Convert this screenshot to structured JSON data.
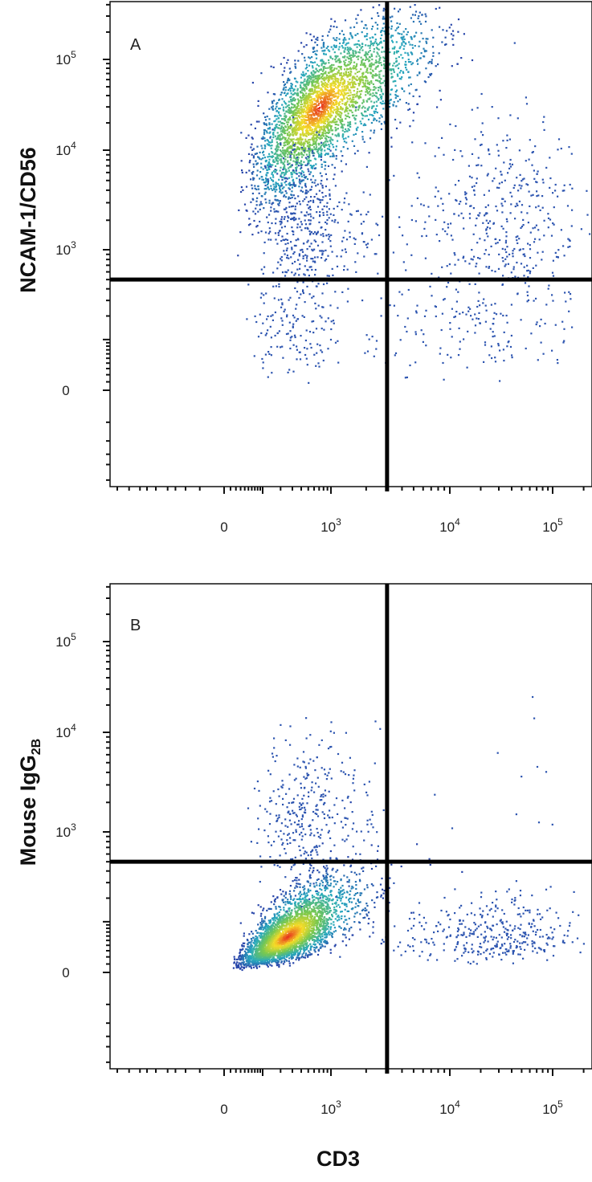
{
  "chart_data": [
    {
      "type": "scatter",
      "panel_label": "A",
      "xlabel": "",
      "ylabel": "NCAM-1/CD56",
      "x_scale": "biexponential",
      "y_scale": "biexponential",
      "x_ticks": [
        {
          "value": 0,
          "base": "0",
          "exp": ""
        },
        {
          "value": 1000,
          "base": "10",
          "exp": "3"
        },
        {
          "value": 10000,
          "base": "10",
          "exp": "4"
        },
        {
          "value": 100000,
          "base": "10",
          "exp": "5"
        }
      ],
      "y_ticks": [
        {
          "value": 0,
          "base": "0",
          "exp": ""
        },
        {
          "value": 1000,
          "base": "10",
          "exp": "3"
        },
        {
          "value": 10000,
          "base": "10",
          "exp": "4"
        },
        {
          "value": 100000,
          "base": "10",
          "exp": "5"
        }
      ],
      "gates": {
        "x": 3000,
        "y": 500
      },
      "populations": [
        {
          "center": [
            700,
            30000
          ],
          "spread": [
            0.45,
            0.45
          ],
          "count": 3400,
          "dense": true
        },
        {
          "center": [
            450,
            1800
          ],
          "spread": [
            0.35,
            0.45
          ],
          "count": 500,
          "dense": false
        },
        {
          "center": [
            30000,
            2500
          ],
          "spread": [
            0.4,
            0.5
          ],
          "count": 420,
          "dense": false
        },
        {
          "center": [
            300,
            120
          ],
          "spread": [
            0.35,
            0.35
          ],
          "count": 120,
          "dense": false
        },
        {
          "center": [
            20000,
            150
          ],
          "spread": [
            0.5,
            0.4
          ],
          "count": 180,
          "dense": false
        }
      ]
    },
    {
      "type": "scatter",
      "panel_label": "B",
      "xlabel": "CD3",
      "ylabel": "Mouse IgG",
      "ylabel_subscript": "2B",
      "x_scale": "biexponential",
      "y_scale": "biexponential",
      "x_ticks": [
        {
          "value": 0,
          "base": "0",
          "exp": ""
        },
        {
          "value": 1000,
          "base": "10",
          "exp": "3"
        },
        {
          "value": 10000,
          "base": "10",
          "exp": "4"
        },
        {
          "value": 100000,
          "base": "10",
          "exp": "5"
        }
      ],
      "y_ticks": [
        {
          "value": 0,
          "base": "0",
          "exp": ""
        },
        {
          "value": 1000,
          "base": "10",
          "exp": "3"
        },
        {
          "value": 10000,
          "base": "10",
          "exp": "4"
        },
        {
          "value": 100000,
          "base": "10",
          "exp": "5"
        }
      ],
      "gates": {
        "x": 3000,
        "y": 500
      },
      "populations": [
        {
          "center": [
            250,
            60
          ],
          "spread": [
            0.4,
            0.35
          ],
          "count": 3300,
          "dense": true
        },
        {
          "center": [
            500,
            1500
          ],
          "spread": [
            0.35,
            0.4
          ],
          "count": 380,
          "dense": false
        },
        {
          "center": [
            25000,
            60
          ],
          "spread": [
            0.4,
            0.3
          ],
          "count": 380,
          "dense": false
        },
        {
          "center": [
            30000,
            5000
          ],
          "spread": [
            0.6,
            0.9
          ],
          "count": 12,
          "dense": false
        }
      ]
    }
  ]
}
